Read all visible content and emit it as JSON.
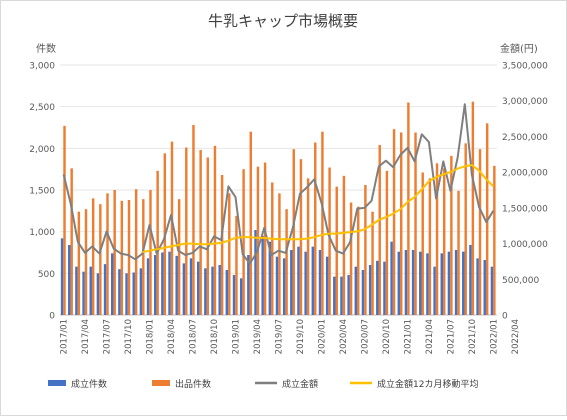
{
  "chart_data": {
    "type": "bar",
    "title": "牛乳キャップ市場概要",
    "left_axis_label": "件数",
    "right_axis_label": "金額(円)",
    "left_ticks": [
      "0",
      "500",
      "1,000",
      "1,500",
      "2,000",
      "2,500",
      "3,000"
    ],
    "right_ticks": [
      "0",
      "500,000",
      "1,000,000",
      "1,500,000",
      "2,000,000",
      "2,500,000",
      "3,000,000",
      "3,500,000"
    ],
    "ylim_left": [
      0,
      3000
    ],
    "ylim_right": [
      0,
      3500000
    ],
    "x_tick_labels": [
      "2017/01",
      "2017/04",
      "2017/07",
      "2017/10",
      "2018/01",
      "2018/04",
      "2018/07",
      "2018/10",
      "2019/01",
      "2019/04",
      "2019/07",
      "2019/10",
      "2020/01",
      "2020/04",
      "2020/07",
      "2020/10",
      "2021/01",
      "2021/04",
      "2021/07",
      "2021/10",
      "2022/01",
      "2022/04"
    ],
    "grid": true,
    "legend_position": "bottom",
    "series": [
      {
        "name": "成立件数",
        "kind": "bar",
        "axis": "left",
        "color": "#4472C4",
        "values": [
          920,
          840,
          580,
          520,
          580,
          500,
          610,
          740,
          550,
          500,
          510,
          560,
          680,
          720,
          750,
          760,
          710,
          620,
          680,
          640,
          560,
          580,
          600,
          540,
          480,
          440,
          720,
          1020,
          950,
          880,
          700,
          680,
          780,
          820,
          760,
          820,
          780,
          700,
          460,
          460,
          480,
          580,
          540,
          600,
          650,
          640,
          880,
          760,
          780,
          780,
          760,
          740,
          580,
          740,
          760,
          780,
          760,
          840,
          680,
          660,
          580
        ]
      },
      {
        "name": "出品件数",
        "kind": "bar",
        "axis": "left",
        "color": "#ED7D31",
        "values": [
          2270,
          1760,
          1240,
          1270,
          1400,
          1330,
          1460,
          1500,
          1370,
          1380,
          1510,
          1390,
          1500,
          1730,
          1940,
          2080,
          1390,
          2010,
          2280,
          1980,
          1890,
          2030,
          1680,
          1460,
          1190,
          1750,
          2200,
          1780,
          1830,
          1590,
          1460,
          1270,
          1990,
          1870,
          1640,
          2070,
          2200,
          1770,
          1540,
          1670,
          1350,
          1300,
          1560,
          1240,
          2040,
          1730,
          2230,
          2190,
          2550,
          2190,
          1710,
          1640,
          1820,
          1760,
          1910,
          1490,
          2060,
          2560,
          1990,
          2300,
          1790
        ]
      },
      {
        "name": "成立金額",
        "kind": "line",
        "axis": "right",
        "color": "#7F7F7F",
        "values": [
          1970000,
          1560000,
          1020000,
          870000,
          960000,
          860000,
          1170000,
          930000,
          860000,
          840000,
          780000,
          860000,
          1260000,
          860000,
          1060000,
          1400000,
          900000,
          840000,
          870000,
          960000,
          920000,
          1100000,
          1050000,
          1800000,
          1650000,
          850000,
          720000,
          880000,
          1220000,
          840000,
          900000,
          870000,
          1220000,
          1700000,
          1790000,
          1900000,
          1570000,
          1120000,
          900000,
          860000,
          1020000,
          1490000,
          1500000,
          1600000,
          2080000,
          2160000,
          2070000,
          2240000,
          2340000,
          2150000,
          2530000,
          2420000,
          1630000,
          2150000,
          1740000,
          2200000,
          2950000,
          1960000,
          1510000,
          1300000,
          1460000
        ]
      },
      {
        "name": "成立金額12カ月移動平均",
        "kind": "line",
        "axis": "right",
        "color": "#FFC000",
        "values": [
          null,
          null,
          null,
          null,
          null,
          null,
          null,
          null,
          null,
          null,
          null,
          880000,
          900000,
          920000,
          940000,
          960000,
          980000,
          1000000,
          1000000,
          990000,
          990000,
          1000000,
          1010000,
          1040000,
          1080000,
          1090000,
          1090000,
          1080000,
          1080000,
          1070000,
          1060000,
          1060000,
          1060000,
          1060000,
          1070000,
          1090000,
          1120000,
          1140000,
          1140000,
          1150000,
          1160000,
          1170000,
          1200000,
          1260000,
          1330000,
          1370000,
          1420000,
          1480000,
          1580000,
          1650000,
          1760000,
          1870000,
          1930000,
          1970000,
          2000000,
          2050000,
          2080000,
          2100000,
          2020000,
          1900000,
          1800000
        ]
      }
    ]
  }
}
